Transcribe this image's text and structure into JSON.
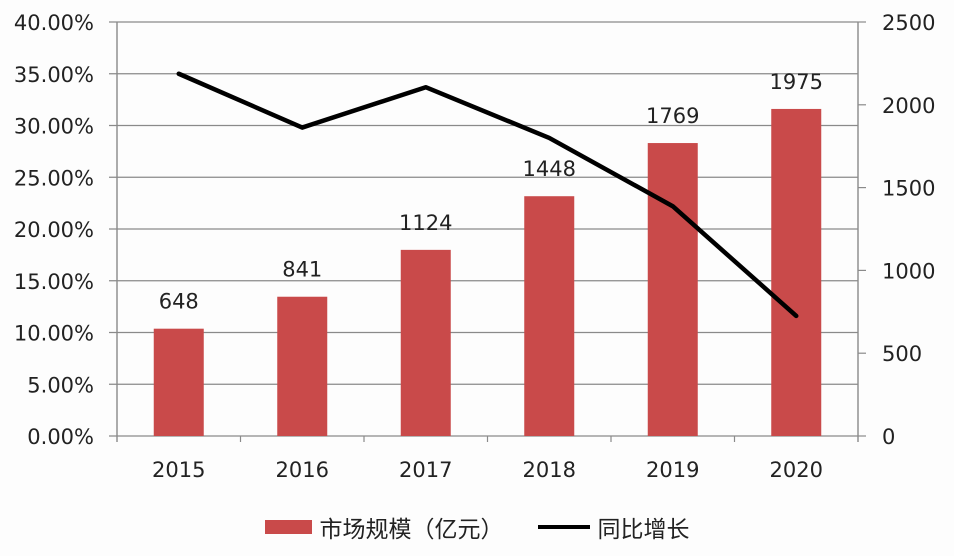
{
  "chart_data": {
    "type": "bar+line",
    "title": "",
    "categories": [
      "2015",
      "2016",
      "2017",
      "2018",
      "2019",
      "2020"
    ],
    "series": [
      {
        "name": "市场规模（亿元）",
        "type": "bar",
        "axis": "right",
        "color": "#c94a4a",
        "values": [
          648,
          841,
          1124,
          1448,
          1769,
          1975
        ]
      },
      {
        "name": "同比增长",
        "type": "line",
        "axis": "left",
        "color": "#000000",
        "values": [
          0.35,
          0.298,
          0.337,
          0.288,
          0.222,
          0.116
        ]
      }
    ],
    "left_axis": {
      "ylim": [
        0,
        0.4
      ],
      "ticks": [
        "0.00%",
        "5.00%",
        "10.00%",
        "15.00%",
        "20.00%",
        "25.00%",
        "30.00%",
        "35.00%",
        "40.00%"
      ]
    },
    "right_axis": {
      "ylim": [
        0,
        2500
      ],
      "ticks": [
        "0",
        "500",
        "1000",
        "1500",
        "2000",
        "2500"
      ]
    },
    "data_labels": [
      "648",
      "841",
      "1124",
      "1448",
      "1769",
      "1975"
    ],
    "grid": true,
    "legend_position": "bottom"
  },
  "legend": {
    "bar_label": "市场规模（亿元）",
    "line_label": "同比增长"
  }
}
